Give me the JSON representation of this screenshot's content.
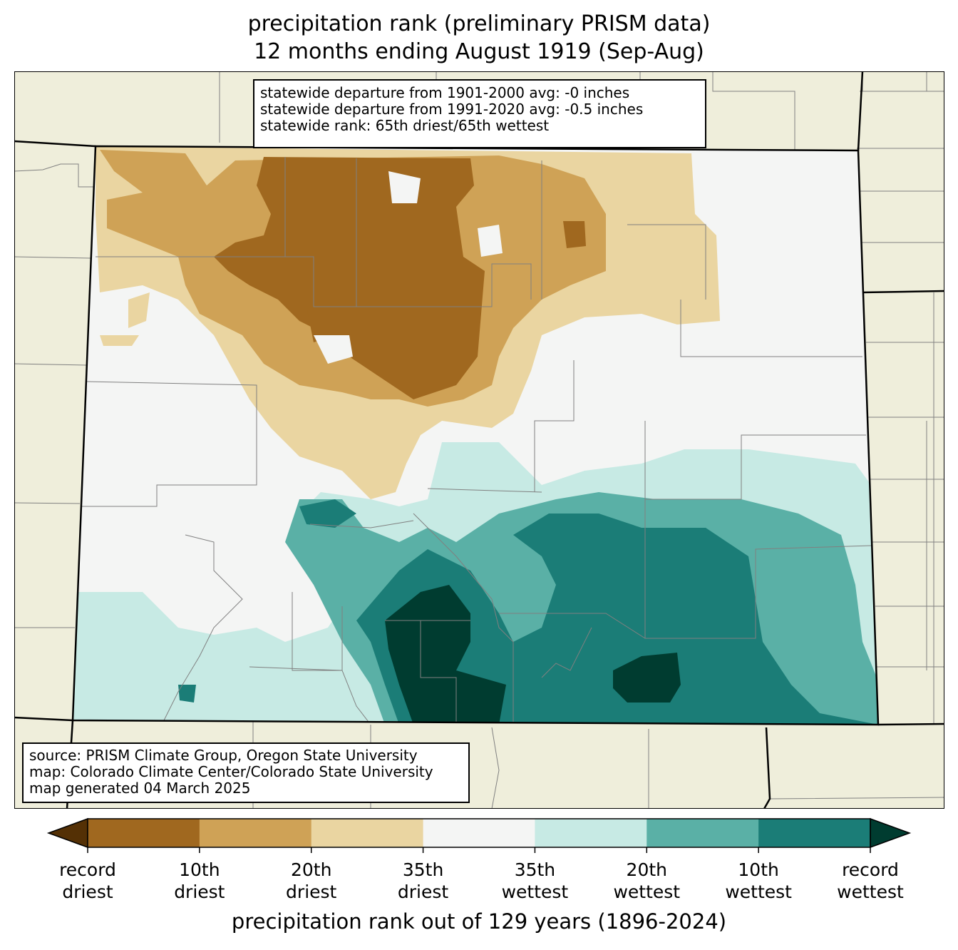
{
  "title": {
    "line1": "precipitation rank (preliminary PRISM data)",
    "line2": "12 months ending August 1919 (Sep-Aug)"
  },
  "stats_box": {
    "line1": "statewide departure from 1901-2000 avg: -0 inches",
    "line2": "statewide departure from 1991-2020 avg: -0.5 inches",
    "line3": "statewide rank: 65th driest/65th wettest"
  },
  "source_box": {
    "line1": "source: PRISM Climate Group, Oregon State University",
    "line2": "map: Colorado Climate Center/Colorado State University",
    "line3": "map generated 04 March 2025"
  },
  "colorbar": {
    "colors": {
      "record_driest_arrow": "#543005",
      "rank_dry_1": "#a0681f",
      "rank_dry_2": "#cfa256",
      "rank_dry_3": "#ead5a1",
      "neutral": "#f4f5f4",
      "rank_wet_3": "#c7eae4",
      "rank_wet_2": "#5ab0a6",
      "rank_wet_1": "#1b7d77",
      "record_wettest_arrow": "#003c30"
    },
    "ticks": [
      {
        "top": "record",
        "bottom": "driest"
      },
      {
        "top": "10th",
        "bottom": "driest"
      },
      {
        "top": "20th",
        "bottom": "driest"
      },
      {
        "top": "35th",
        "bottom": "driest"
      },
      {
        "top": "35th",
        "bottom": "wettest"
      },
      {
        "top": "20th",
        "bottom": "wettest"
      },
      {
        "top": "10th",
        "bottom": "wettest"
      },
      {
        "top": "record",
        "bottom": "wettest"
      }
    ],
    "axis_label": "precipitation rank out of 129 years (1896-2024)"
  },
  "map_colors": {
    "background_land": "#efeedb",
    "county_lines": "#808080",
    "state_lines": "#000000"
  }
}
